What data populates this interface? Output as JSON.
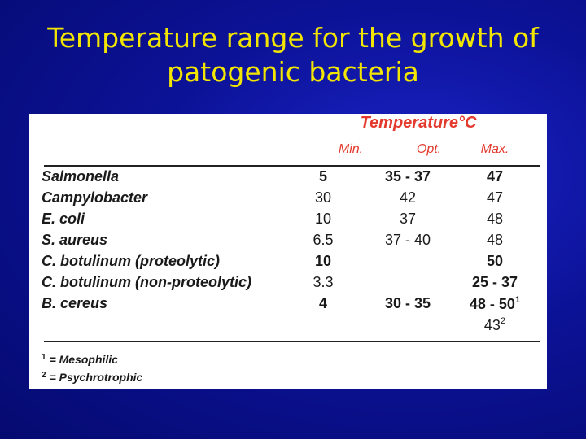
{
  "title": {
    "line1": "Temperature range for the growth of",
    "line2": "patogenic bacteria"
  },
  "table": {
    "group_header": "Temperature°C",
    "columns": [
      "Min.",
      "Opt.",
      "Max."
    ],
    "rows": [
      {
        "name": "Salmonella",
        "min": "5",
        "opt": "35 - 37",
        "max": "47"
      },
      {
        "name": "Campylobacter",
        "min": "30",
        "opt": "42",
        "max": "47"
      },
      {
        "name": "E. coli",
        "min": "10",
        "opt": "37",
        "max": "48"
      },
      {
        "name": "S. aureus",
        "min": "6.5",
        "opt": "37 - 40",
        "max": "48"
      },
      {
        "name": "C. botulinum (proteolytic)",
        "min": "10",
        "opt": "",
        "max": "50"
      },
      {
        "name": "C. botulinum (non-proteolytic)",
        "min": "3.3",
        "opt": "",
        "max": "25 - 37"
      },
      {
        "name": "B. cereus",
        "min": "4",
        "opt": "30 - 35",
        "max": "48 - 50",
        "max_sup": "1",
        "max_extra": "43",
        "max_extra_sup": "2"
      }
    ],
    "footnotes": [
      {
        "mark": "1",
        "text": "= Mesophilic"
      },
      {
        "mark": "2",
        "text": "= Psychrotrophic"
      }
    ]
  }
}
